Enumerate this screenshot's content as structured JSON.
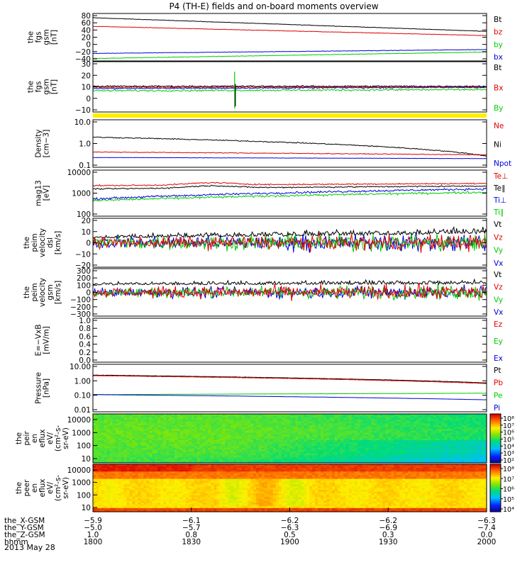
{
  "title": "P4 (TH-E) fields and on-board moments overview",
  "date": "2013 May 28",
  "colors": {
    "black": "#000000",
    "red": "#e00000",
    "green": "#00cc00",
    "blue": "#0000dd",
    "yellow": "#ffee00"
  },
  "chart_data": [
    {
      "id": "fgs-gsm",
      "type": "line",
      "ylabel": [
        "the",
        "fgs",
        "gsm",
        "[nT]"
      ],
      "yticks": [
        "80",
        "60",
        "40",
        "20",
        "0",
        "−20",
        "−40"
      ],
      "ylim": [
        -45,
        88
      ],
      "scale": "linear",
      "legend": [
        {
          "label": "Bt",
          "color": "#000000"
        },
        {
          "label": "bz",
          "color": "#e00000"
        },
        {
          "label": "by",
          "color": "#00cc00"
        },
        {
          "label": "bx",
          "color": "#0000dd"
        }
      ],
      "series": [
        {
          "color": "#000000",
          "start": 76,
          "end": 38,
          "noise": 0.5
        },
        {
          "color": "#e00000",
          "start": 52,
          "end": 26,
          "noise": 0.5
        },
        {
          "color": "#0000dd",
          "start": -24,
          "end": -13,
          "noise": 0.5
        },
        {
          "color": "#00cc00",
          "start": -38,
          "end": -20,
          "noise": 0.5
        }
      ]
    },
    {
      "id": "fgs-dsl",
      "type": "line",
      "ylabel": [
        "the",
        "fgs",
        "gsm",
        "[nT]"
      ],
      "yticks": [
        "30",
        "20",
        "10",
        "0",
        "−10"
      ],
      "ylim": [
        -15,
        30
      ],
      "scale": "linear",
      "legend": [
        {
          "label": "Bt",
          "color": "#000000"
        },
        {
          "label": "Bx",
          "color": "#e00000"
        },
        {
          "label": "By",
          "color": "#00cc00"
        }
      ],
      "series": [
        {
          "color": "#0000dd",
          "start": 6,
          "end": 7,
          "noise": 0.4
        },
        {
          "color": "#00cc00",
          "start": 4,
          "end": 5,
          "noise": 0.6
        },
        {
          "color": "#e00000",
          "start": 7,
          "end": 7.5,
          "noise": 0.5
        },
        {
          "color": "#000000",
          "start": 8,
          "end": 8,
          "noise": 0.5
        }
      ],
      "spike": {
        "at": 0.36,
        "min": -12,
        "max": 21
      }
    },
    {
      "id": "density",
      "type": "line",
      "ylabel": [
        "Density",
        "[cm−3]"
      ],
      "yticks": [
        "10.0",
        "1.0",
        "0.1"
      ],
      "ylim": [
        0.1,
        15
      ],
      "scale": "log",
      "legend": [
        {
          "label": "Ne",
          "color": "#e00000"
        },
        {
          "label": "Ni",
          "color": "#000000"
        },
        {
          "label": "Npot",
          "color": "#0000dd"
        }
      ],
      "series": [
        {
          "color": "#000000",
          "start": 2.4,
          "end": 0.33,
          "noise": 0.04
        },
        {
          "color": "#e00000",
          "start": 0.5,
          "end": 0.37,
          "noise": 0.03
        },
        {
          "color": "#0000dd",
          "start": 0.28,
          "end": 0.25,
          "noise": 0.01
        }
      ]
    },
    {
      "id": "temperature",
      "type": "line",
      "ylabel": [
        "mag13",
        "[eV]"
      ],
      "yticks": [
        "10000",
        "1000",
        "100"
      ],
      "ylim": [
        100,
        12000
      ],
      "scale": "log",
      "legend": [
        {
          "label": "Te⊥",
          "color": "#e00000"
        },
        {
          "label": "Te∥",
          "color": "#000000"
        },
        {
          "label": "Ti⊥",
          "color": "#0000dd"
        },
        {
          "label": "Ti∥",
          "color": "#00cc00"
        }
      ],
      "series": [
        {
          "color": "#000000",
          "start": 1700,
          "end": 2300,
          "noise": 0.05
        },
        {
          "color": "#e00000",
          "start": 2400,
          "end": 3000,
          "noise": 0.05
        },
        {
          "color": "#0000dd",
          "start": 600,
          "end": 1700,
          "noise": 0.08
        },
        {
          "color": "#00cc00",
          "start": 500,
          "end": 1200,
          "noise": 0.08
        }
      ]
    },
    {
      "id": "peim-velocity-dsl",
      "type": "line",
      "ylabel": [
        "the",
        "peim",
        "velocity",
        "dsl",
        "[km/s]"
      ],
      "yticks": [
        "20",
        "10",
        "0",
        "−10",
        "−20"
      ],
      "ylim": [
        -22,
        22
      ],
      "scale": "linear",
      "legend": [
        {
          "label": "Vt",
          "color": "#000000"
        },
        {
          "label": "Vz",
          "color": "#e00000"
        },
        {
          "label": "Vy",
          "color": "#00cc00"
        },
        {
          "label": "Vx",
          "color": "#0000dd"
        }
      ],
      "series": [
        {
          "color": "#0000dd",
          "start": 0,
          "end": 0,
          "noise": 4,
          "min": -20
        },
        {
          "color": "#00cc00",
          "start": 0,
          "end": 0,
          "noise": 4,
          "min": -20
        },
        {
          "color": "#000000",
          "start": 4,
          "end": 8,
          "noise": 3,
          "min": 0
        },
        {
          "color": "#e00000",
          "start": 0,
          "end": 0,
          "noise": 3.5,
          "min": -20
        }
      ]
    },
    {
      "id": "peim-velocity-gsm",
      "type": "line",
      "ylabel": [
        "the",
        "peim",
        "velocity",
        "gsm",
        "[km/s]"
      ],
      "yticks": [
        "300",
        "200",
        "100",
        "0",
        "−100",
        "−200",
        "−300"
      ],
      "ylim": [
        -320,
        320
      ],
      "scale": "linear",
      "legend": [
        {
          "label": "Vt",
          "color": "#000000"
        },
        {
          "label": "Vz",
          "color": "#e00000"
        },
        {
          "label": "Vy",
          "color": "#00cc00"
        },
        {
          "label": "Vx",
          "color": "#0000dd"
        }
      ],
      "series": [
        {
          "color": "#0000dd",
          "start": 0,
          "end": 0,
          "noise": 45,
          "min": -300
        },
        {
          "color": "#000000",
          "start": 100,
          "end": 110,
          "noise": 35,
          "min": 0
        },
        {
          "color": "#00cc00",
          "start": 0,
          "end": 0,
          "noise": 45,
          "min": -300
        },
        {
          "color": "#e00000",
          "start": 0,
          "end": 0,
          "noise": 50,
          "min": -300
        }
      ]
    },
    {
      "id": "e-field",
      "type": "line",
      "ylabel": [
        "E=−VxB",
        "[mV/m]"
      ],
      "yticks": [
        "1.0",
        "0.8",
        "0.6",
        "0.4",
        "0.2",
        "0.0"
      ],
      "ylim": [
        0,
        1
      ],
      "scale": "linear",
      "legend": [
        {
          "label": "Ez",
          "color": "#e00000"
        },
        {
          "label": "Ey",
          "color": "#00cc00"
        },
        {
          "label": "Ex",
          "color": "#0000dd"
        }
      ],
      "series": []
    },
    {
      "id": "pressure",
      "type": "line",
      "ylabel": [
        "Pressure",
        "[nPa]"
      ],
      "yticks": [
        "10.00",
        "1.00",
        "0.10",
        "0.01"
      ],
      "ylim": [
        0.01,
        12
      ],
      "scale": "log",
      "legend": [
        {
          "label": "Pt",
          "color": "#000000"
        },
        {
          "label": "Pb",
          "color": "#e00000"
        },
        {
          "label": "Pe",
          "color": "#00cc00"
        },
        {
          "label": "Pi",
          "color": "#0000dd"
        }
      ],
      "series": [
        {
          "color": "#00cc00",
          "start": 0.13,
          "end": 0.16,
          "noise": 0.01
        },
        {
          "color": "#0000dd",
          "start": 0.13,
          "end": 0.06,
          "noise": 0.005
        },
        {
          "color": "#000000",
          "start": 2.4,
          "end": 0.75,
          "noise": 0.02
        },
        {
          "color": "#e00000",
          "start": 2.2,
          "end": 0.68,
          "noise": 0.02
        }
      ]
    },
    {
      "id": "peir-en-eflux",
      "type": "heatmap",
      "ylabel": [
        "the",
        "peir",
        "en",
        "eflux",
        "eV/",
        "(cm²-s-",
        "sr-eV)"
      ],
      "yticks": [
        "10000",
        "1000",
        "100",
        "10"
      ],
      "colorbar": [
        "10⁸",
        "10⁷",
        "10⁶",
        "10⁵",
        "10⁴",
        "10³",
        "10²"
      ],
      "colorbar_range": [
        2,
        8
      ]
    },
    {
      "id": "peer-en-eflux",
      "type": "heatmap",
      "ylabel": [
        "the",
        "peer",
        "en",
        "eflux",
        "eV/",
        "(cm²-s-",
        "sr-eV)"
      ],
      "yticks": [
        "10000",
        "1000",
        "100",
        "10"
      ],
      "colorbar": [
        "10⁸",
        "10⁷",
        "10⁶",
        "10⁵",
        "10⁴"
      ],
      "colorbar_range": [
        3.6,
        8.2
      ]
    }
  ],
  "xaxis": {
    "row_labels": [
      "the_X-GSM",
      "the_Y-GSM",
      "the_Z-GSM",
      "hhmm"
    ],
    "columns": [
      [
        "−5.9",
        "−5.0",
        "1.0",
        "1800"
      ],
      [
        "−6.1",
        "−5.7",
        "0.8",
        "1830"
      ],
      [
        "−6.2",
        "−6.3",
        "0.5",
        "1900"
      ],
      [
        "−6.2",
        "−6.9",
        "0.3",
        "1930"
      ],
      [
        "−6.3",
        "−7.4",
        "0.0",
        "2000"
      ]
    ]
  }
}
